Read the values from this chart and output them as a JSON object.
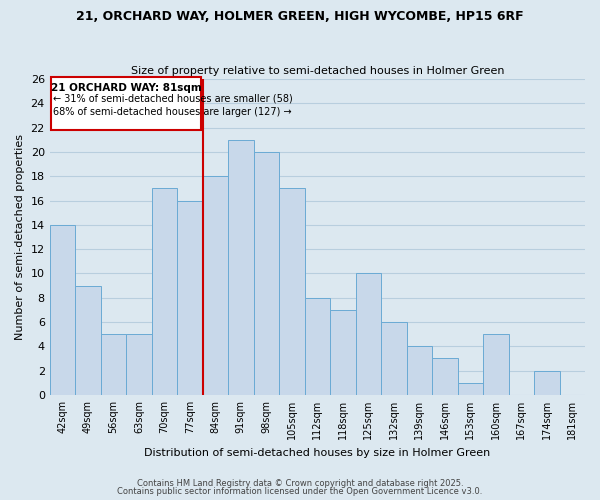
{
  "title": "21, ORCHARD WAY, HOLMER GREEN, HIGH WYCOMBE, HP15 6RF",
  "subtitle": "Size of property relative to semi-detached houses in Holmer Green",
  "xlabel": "Distribution of semi-detached houses by size in Holmer Green",
  "ylabel": "Number of semi-detached properties",
  "bar_labels": [
    "42sqm",
    "49sqm",
    "56sqm",
    "63sqm",
    "70sqm",
    "77sqm",
    "84sqm",
    "91sqm",
    "98sqm",
    "105sqm",
    "112sqm",
    "118sqm",
    "125sqm",
    "132sqm",
    "139sqm",
    "146sqm",
    "153sqm",
    "160sqm",
    "167sqm",
    "174sqm",
    "181sqm"
  ],
  "bar_values": [
    14,
    9,
    5,
    5,
    17,
    16,
    18,
    21,
    20,
    17,
    8,
    7,
    10,
    6,
    4,
    3,
    1,
    5,
    0,
    2,
    0
  ],
  "bar_color": "#c8d8ea",
  "bar_edge_color": "#6aaad4",
  "grid_color": "#b8cede",
  "background_color": "#dce8f0",
  "vline_color": "#cc0000",
  "annotation_title": "21 ORCHARD WAY: 81sqm",
  "annotation_line1": "← 31% of semi-detached houses are smaller (58)",
  "annotation_line2": "68% of semi-detached houses are larger (127) →",
  "ylim": [
    0,
    26
  ],
  "yticks": [
    0,
    2,
    4,
    6,
    8,
    10,
    12,
    14,
    16,
    18,
    20,
    22,
    24,
    26
  ],
  "footer1": "Contains HM Land Registry data © Crown copyright and database right 2025.",
  "footer2": "Contains public sector information licensed under the Open Government Licence v3.0."
}
